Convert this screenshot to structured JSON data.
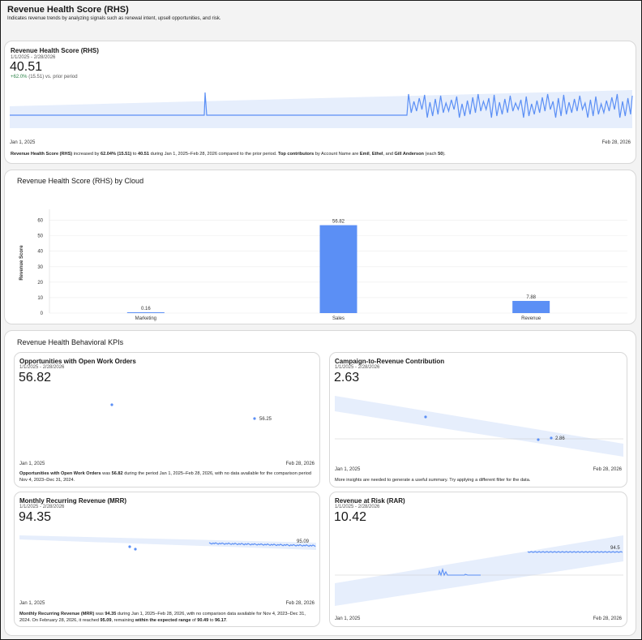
{
  "header": {
    "title": "Revenue Health Score (RHS)",
    "description": "Indicates revenue trends by analyzing signals such as renewal intent, upsell opportunities, and risk."
  },
  "main_kpi": {
    "title": "Revenue Health Score (RHS)",
    "date_range": "1/1/2025 - 2/28/2026",
    "value": "40.51",
    "change_positive": "+62.0%",
    "change_rest": "(15.51) vs. prior period",
    "x_start": "Jan 1, 2025",
    "x_end": "Feb 28, 2026",
    "summary": {
      "p1": "Revenue Health Score (RHS)",
      "p2": " increased by ",
      "p3": "62.04% (15.51)",
      "p4": " to ",
      "p5": "40.51",
      "p6": " during Jan 1, 2025–Feb 28, 2026 compared to the prior period. ",
      "p7": "Top contributors",
      "p8": " by Account Name are ",
      "p9": "Emil",
      "p10": ", ",
      "p11": "Ethel",
      "p12": ", and ",
      "p13": "Gill Anderson",
      "p14": " (each ",
      "p15": "50",
      "p16": ")."
    }
  },
  "cloud_chart": {
    "title": "Revenue Health Score (RHS) by Cloud",
    "chart_data": {
      "type": "bar",
      "categories": [
        "Marketing",
        "Sales",
        "Revenue"
      ],
      "values": [
        0.16,
        56.82,
        7.88
      ],
      "value_labels": [
        "0.16",
        "56.82",
        "7.88"
      ],
      "ylabel": "Revenue Score",
      "ylim": [
        0,
        65
      ],
      "yticks": [
        "0",
        "10",
        "20",
        "30",
        "40",
        "50",
        "60"
      ],
      "bar_color": "#5b8ff5",
      "grid": true
    }
  },
  "behavioral": {
    "title": "Revenue Health Behavioral KPIs",
    "cards": [
      {
        "title": "Opportunities with Open Work Orders",
        "date_range": "1/1/2025 - 2/28/2026",
        "value": "56.82",
        "end_label": "56.25",
        "x_start": "Jan 1, 2025",
        "x_end": "Feb 28, 2026",
        "summary": {
          "p1": "Opportunities with Open Work Orders",
          "p2": " was ",
          "p3": "56.82",
          "p4": " during the period Jan 1, 2025–Feb 28, 2026, with no data available for the comparison period Nov 4, 2023–Dec 31, 2024."
        }
      },
      {
        "title": "Campaign-to-Revenue Contribution",
        "date_range": "1/1/2025 - 2/28/2026",
        "value": "2.63",
        "end_label": "2.86",
        "x_start": "Jan 1, 2025",
        "x_end": "Feb 28, 2026",
        "summary": {
          "p1": "More insights are needed to generate a useful summary. Try applying a different filter for the data."
        }
      },
      {
        "title": "Monthly Recurring Revenue (MRR)",
        "date_range": "1/1/2025 - 2/28/2026",
        "value": "94.35",
        "end_label": "95.09",
        "x_start": "Jan 1, 2025",
        "x_end": "Feb 28, 2026",
        "summary": {
          "p1": "Monthly Recurring Revenue (MRR)",
          "p2": " was ",
          "p3": "94.35",
          "p4": " during Jan 1, 2025–Feb 28, 2026, with no comparison data available for Nov 4, 2023–Dec 31, 2024. On February 28, 2026, it reached ",
          "p5": "95.09",
          "p6": ", remaining ",
          "p7": "within the expected range",
          "p8": " of ",
          "p9": "90.49",
          "p10": " to ",
          "p11": "96.17",
          "p12": "."
        }
      },
      {
        "title": "Revenue at Risk (RAR)",
        "date_range": "1/1/2025 - 2/28/2026",
        "value": "10.42",
        "end_label": "94.5",
        "x_start": "Jan 1, 2025",
        "x_end": "Feb 28, 2026"
      }
    ]
  },
  "colors": {
    "line": "#5b8ff5",
    "band": "#e6eefc",
    "positive": "#2e844a"
  }
}
